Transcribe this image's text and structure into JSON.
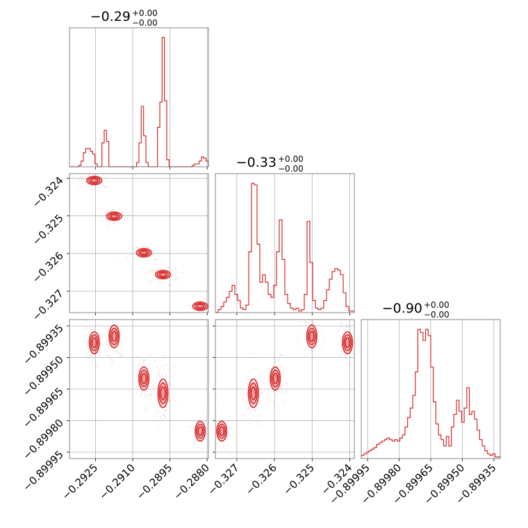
{
  "chart_data": {
    "type": "corner",
    "color": "#d62728",
    "grid": true,
    "parameters": [
      {
        "title": {
          "value": "−0.29",
          "upper": "+0.00",
          "lower": "−0.00"
        },
        "range": [
          -0.29355,
          -0.28795
        ],
        "ticks": [
          -0.2925,
          -0.291,
          -0.2895,
          -0.288
        ],
        "tick_labels": [
          "−0.2925",
          "−0.2910",
          "−0.2895",
          "−0.2880"
        ],
        "histogram": [
          0,
          0,
          0,
          0,
          0.01,
          0.04,
          0.1,
          0.13,
          0.13,
          0.11,
          0.09,
          0.02,
          0,
          0,
          0.17,
          0.26,
          0.18,
          0,
          0,
          0,
          0,
          0,
          0,
          0,
          0,
          0,
          0,
          0,
          0,
          0.03,
          0.17,
          0.43,
          0.22,
          0.03,
          0,
          0,
          0,
          0,
          0.28,
          0.46,
          0.92,
          0.47,
          0.05,
          0,
          0,
          0,
          0,
          0,
          0,
          0,
          0,
          0,
          0,
          0.01,
          0.02,
          0.02,
          0.04,
          0.07,
          0.06,
          0.04
        ]
      },
      {
        "title": {
          "value": "−0.33",
          "upper": "+0.00",
          "lower": "−0.00"
        },
        "range": [
          -0.32757,
          -0.32388
        ],
        "ticks": [
          -0.327,
          -0.326,
          -0.325,
          -0.324
        ],
        "tick_labels": [
          "−0.327",
          "−0.326",
          "−0.325",
          "−0.324"
        ],
        "histogram": [
          0,
          0.02,
          0.04,
          0.07,
          0.1,
          0.14,
          0.18,
          0.12,
          0.08,
          0.03,
          0.02,
          0.05,
          0.4,
          0.85,
          0.84,
          0.45,
          0.2,
          0.25,
          0.2,
          0.12,
          0.1,
          0.18,
          0.4,
          0.61,
          0.35,
          0.12,
          0.06,
          0.03,
          0.02,
          0.03,
          0.01,
          0.02,
          0.12,
          0.6,
          0.33,
          0.08,
          0.03,
          0.02,
          0.03,
          0.08,
          0.15,
          0.22,
          0.27,
          0.29,
          0.28,
          0.25,
          0.13,
          0.04,
          0.01,
          0.01
        ]
      },
      {
        "title": {
          "value": "−0.90",
          "upper": "+0.00",
          "lower": "−0.00"
        },
        "range": [
          -0.89998,
          -0.89932
        ],
        "ticks": [
          -0.89995,
          -0.8998,
          -0.89965,
          -0.8995,
          -0.89935
        ],
        "tick_labels": [
          "−0.89995",
          "−0.89980",
          "−0.89965",
          "−0.89950",
          "−0.89935"
        ],
        "histogram": [
          0.02,
          0.03,
          0.04,
          0.05,
          0.06,
          0.07,
          0.09,
          0.1,
          0.11,
          0.12,
          0.13,
          0.12,
          0.11,
          0.12,
          0.11,
          0.13,
          0.15,
          0.2,
          0.26,
          0.32,
          0.4,
          0.55,
          0.82,
          0.8,
          0.75,
          0.82,
          0.78,
          0.58,
          0.36,
          0.22,
          0.15,
          0.12,
          0.08,
          0.14,
          0.08,
          0.2,
          0.28,
          0.37,
          0.3,
          0.23,
          0.32,
          0.45,
          0.28,
          0.3,
          0.25,
          0.18,
          0.12,
          0.08,
          0.05,
          0.03,
          0.02,
          0.03,
          0.01,
          0.01
        ]
      }
    ],
    "clusters": [
      {
        "p1": -0.29255,
        "p2": -0.32406,
        "p3": -0.89943,
        "w": 0.14
      },
      {
        "p1": -0.29175,
        "p2": -0.32501,
        "p3": -0.8994,
        "w": 0.17
      },
      {
        "p1": -0.29055,
        "p2": -0.32598,
        "p3": -0.8996,
        "w": 0.18
      },
      {
        "p1": -0.28978,
        "p2": -0.32656,
        "p3": -0.89967,
        "w": 0.38
      },
      {
        "p1": -0.28828,
        "p2": -0.3274,
        "p3": -0.89985,
        "w": 0.06
      }
    ]
  }
}
